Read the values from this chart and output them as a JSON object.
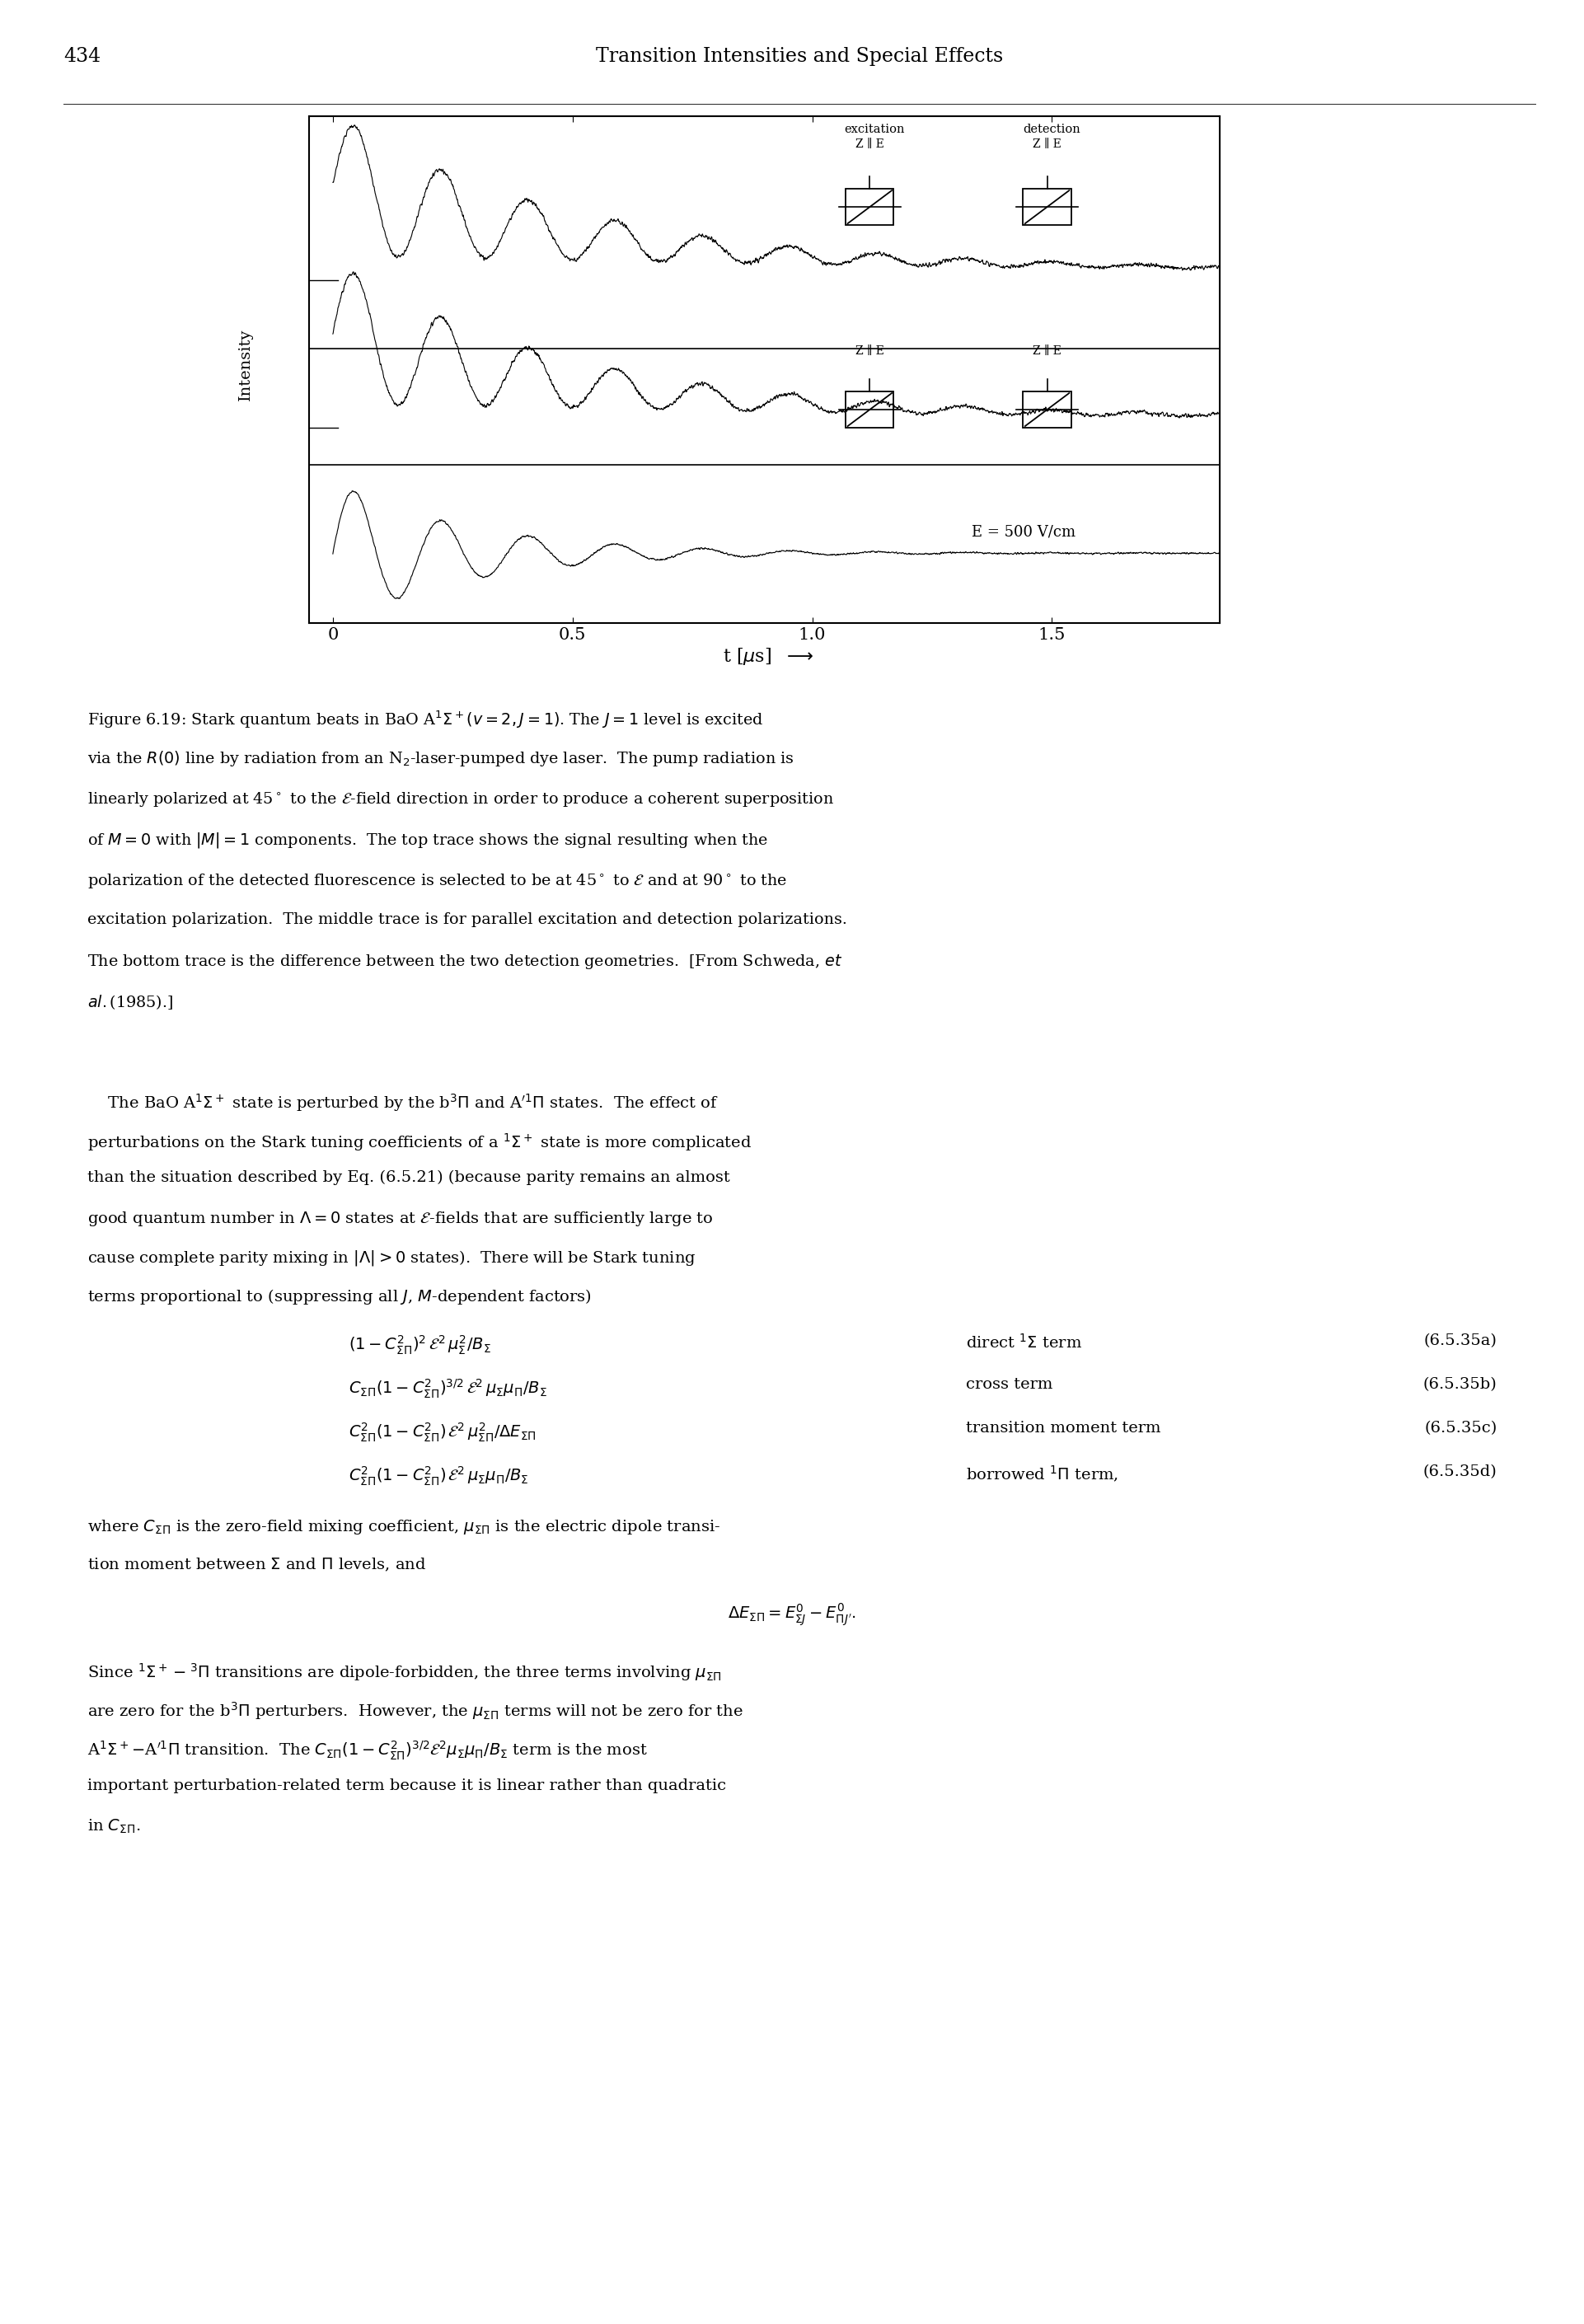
{
  "page_number": "434",
  "header_title": "Transition Intensities and Special Effects",
  "background_color": "#ffffff",
  "trace_freq": 5.5,
  "trace1_decay": 2.2,
  "trace1_amp": 0.38,
  "trace1_baseline_amp": 0.45,
  "trace1_baseline_decay": 1.8,
  "trace2_decay": 2.2,
  "trace2_amp": 0.38,
  "trace2_baseline_amp": 0.45,
  "trace2_baseline_decay": 1.8,
  "trace3_decay": 3.5,
  "trace3_amp": 0.38,
  "noise_amp": 0.012,
  "xlim": [
    -0.05,
    1.85
  ],
  "xticks": [
    0.0,
    0.5,
    1.0,
    1.5
  ],
  "xticklabels": [
    "0",
    "0.5",
    "1.0",
    "1.5"
  ]
}
